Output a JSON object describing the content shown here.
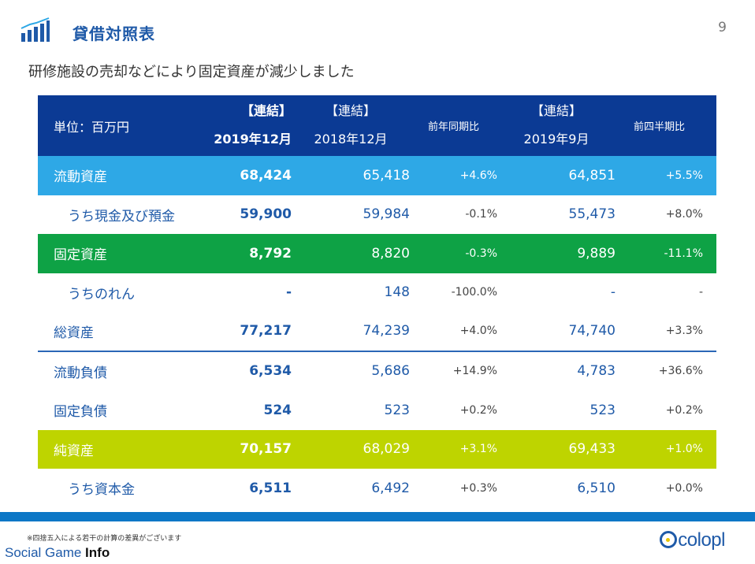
{
  "header": {
    "title": "貸借対照表",
    "page_number": "9",
    "subtitle": "研修施設の売却などにより固定資産が減少しました",
    "logo_icon": "bar-chart-icon"
  },
  "table": {
    "header": {
      "unit": "単位：百万円",
      "cur_tag": "【連結】",
      "cur_period": "2019年12月",
      "prev_tag": "【連結】",
      "prev_period": "2018年12月",
      "yoy": "前年同期比",
      "sep_tag": "【連結】",
      "sep_period": "2019年9月",
      "qoq": "前四半期比"
    },
    "rows": [
      {
        "label": "流動資産",
        "cur": "68,424",
        "prev": "65,418",
        "yoy": "+4.6%",
        "sep": "64,851",
        "qoq": "+5.5%"
      },
      {
        "label": "うち現金及び預金",
        "cur": "59,900",
        "prev": "59,984",
        "yoy": "-0.1%",
        "sep": "55,473",
        "qoq": "+8.0%"
      },
      {
        "label": "固定資産",
        "cur": "8,792",
        "prev": "8,820",
        "yoy": "-0.3%",
        "sep": "9,889",
        "qoq": "-11.1%"
      },
      {
        "label": "うちのれん",
        "cur": "-",
        "prev": "148",
        "yoy": "-100.0%",
        "sep": "-",
        "qoq": "-"
      },
      {
        "label": "総資産",
        "cur": "77,217",
        "prev": "74,239",
        "yoy": "+4.0%",
        "sep": "74,740",
        "qoq": "+3.3%"
      },
      {
        "label": "流動負債",
        "cur": "6,534",
        "prev": "5,686",
        "yoy": "+14.9%",
        "sep": "4,783",
        "qoq": "+36.6%"
      },
      {
        "label": "固定負債",
        "cur": "524",
        "prev": "523",
        "yoy": "+0.2%",
        "sep": "523",
        "qoq": "+0.2%"
      },
      {
        "label": "純資産",
        "cur": "70,157",
        "prev": "68,029",
        "yoy": "+3.1%",
        "sep": "69,433",
        "qoq": "+1.0%"
      },
      {
        "label": "うち資本金",
        "cur": "6,511",
        "prev": "6,492",
        "yoy": "+0.3%",
        "sep": "6,510",
        "qoq": "+0.0%"
      }
    ]
  },
  "colors": {
    "header_bg": "#0b3a94",
    "current_assets_band": "#2ea8e6",
    "fixed_assets_band": "#0ea245",
    "net_assets_band": "#bed400",
    "accent_text": "#1f5aa8",
    "footer_bar": "#0c77c6"
  },
  "footer": {
    "note": "※四捨五入による若干の計算の差異がございます",
    "site_prefix": "Social Game ",
    "site_bold": "Info",
    "brand": "colopl"
  }
}
